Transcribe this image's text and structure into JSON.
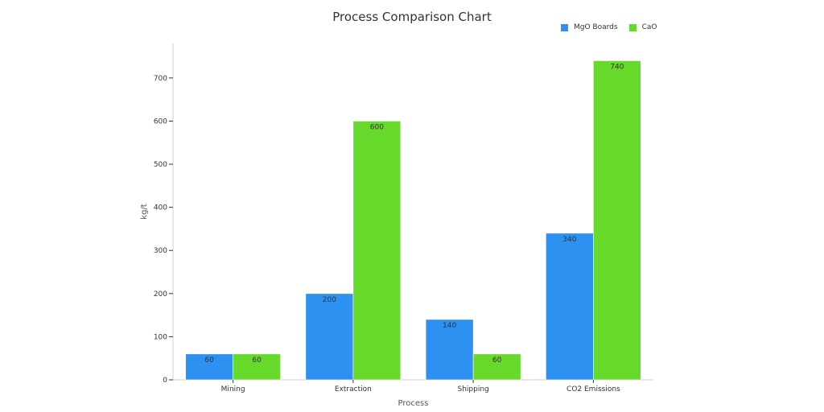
{
  "chart_data": {
    "type": "bar",
    "title": "Process Comparison Chart",
    "xlabel": "Process",
    "ylabel": "kg/t",
    "categories": [
      "Mining",
      "Extraction",
      "Shipping",
      "CO2 Emissions"
    ],
    "series": [
      {
        "name": "MgO Boards",
        "values": [
          60,
          200,
          140,
          340
        ],
        "color": "#2d91f2"
      },
      {
        "name": "CaO",
        "values": [
          60,
          600,
          60,
          740
        ],
        "color": "#66d92b"
      }
    ],
    "ylim": [
      0,
      780
    ],
    "yticks": [
      0,
      100,
      200,
      300,
      400,
      500,
      600,
      700
    ],
    "grid": false,
    "legend_position": "top-right"
  }
}
